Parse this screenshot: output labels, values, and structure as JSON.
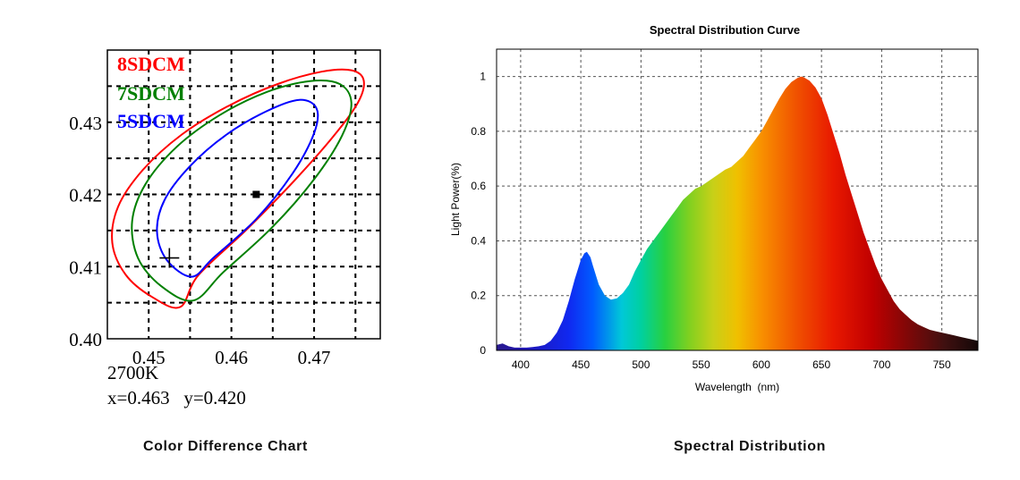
{
  "captions": {
    "left": "Color Difference Chart",
    "right": "Spectral Distribution"
  },
  "chart_data": [
    {
      "type": "scatter",
      "title": "",
      "xlabel": "",
      "ylabel": "",
      "xlim": [
        0.445,
        0.478
      ],
      "ylim": [
        0.4,
        0.44
      ],
      "x_ticks": [
        "0.45",
        "0.46",
        "0.47"
      ],
      "y_ticks": [
        "0.40",
        "0.41",
        "0.42",
        "0.43"
      ],
      "grid": true,
      "legend": "top-left",
      "colors": {
        "8SDCM": "#ff0000",
        "7SDCM": "#008000",
        "5SDCM": "#0000ff"
      },
      "series": [
        {
          "name": "8SDCM",
          "shape": "ellipse",
          "x": [
            0.4538,
            0.4504,
            0.4472,
            0.4456,
            0.4463,
            0.4493,
            0.454,
            0.4597,
            0.4656,
            0.4709,
            0.4745,
            0.476,
            0.4753,
            0.4723,
            0.4676,
            0.4619,
            0.456
          ],
          "y": [
            0.4044,
            0.4058,
            0.4089,
            0.4133,
            0.4183,
            0.4234,
            0.4283,
            0.4323,
            0.4353,
            0.437,
            0.4372,
            0.4358,
            0.4327,
            0.428,
            0.4219,
            0.4152,
            0.4088
          ]
        },
        {
          "name": "7SDCM",
          "shape": "ellipse",
          "x": [
            0.4554,
            0.4515,
            0.4487,
            0.448,
            0.4496,
            0.4534,
            0.4586,
            0.4643,
            0.4695,
            0.4731,
            0.4745,
            0.4734,
            0.47,
            0.4649,
            0.459
          ],
          "y": [
            0.4053,
            0.4073,
            0.4112,
            0.4163,
            0.4214,
            0.4266,
            0.431,
            0.4342,
            0.4357,
            0.4353,
            0.4327,
            0.4282,
            0.4221,
            0.4154,
            0.4092
          ]
        },
        {
          "name": "5SDCM",
          "shape": "ellipse",
          "x": [
            0.4552,
            0.4522,
            0.451,
            0.4519,
            0.4549,
            0.4593,
            0.4642,
            0.4682,
            0.4703,
            0.47,
            0.4674,
            0.463,
            0.4578
          ],
          "y": [
            0.4086,
            0.4109,
            0.4148,
            0.4192,
            0.4238,
            0.4282,
            0.4315,
            0.4331,
            0.4319,
            0.4285,
            0.4229,
            0.4166,
            0.4112
          ]
        }
      ],
      "points": [
        {
          "name": "measured",
          "x": 0.463,
          "y": 0.42,
          "marker": "square"
        },
        {
          "name": "cross",
          "x": 0.4525,
          "y": 0.4112,
          "marker": "plus"
        }
      ],
      "annotations": {
        "cct": "2700K",
        "coords": "x=0.463   y=0.420"
      }
    },
    {
      "type": "area",
      "title": "Spectral Distribution Curve",
      "xlabel": "Wavelength  (nm)",
      "ylabel": "Light Power(%)",
      "xlim": [
        380,
        780
      ],
      "ylim": [
        0,
        1.1
      ],
      "x_ticks": [
        "400",
        "450",
        "500",
        "550",
        "600",
        "650",
        "700",
        "750"
      ],
      "y_ticks": [
        "0",
        "0.2",
        "0.4",
        "0.6",
        "0.8",
        "1"
      ],
      "grid": true,
      "fill": "visible-spectrum gradient",
      "x": [
        380,
        385,
        390,
        395,
        400,
        405,
        410,
        415,
        420,
        425,
        430,
        435,
        440,
        445,
        450,
        453,
        455,
        458,
        460,
        465,
        470,
        475,
        480,
        485,
        490,
        495,
        500,
        505,
        510,
        515,
        520,
        525,
        530,
        535,
        540,
        545,
        550,
        555,
        560,
        565,
        570,
        575,
        580,
        585,
        590,
        595,
        600,
        605,
        610,
        615,
        620,
        625,
        630,
        633,
        635,
        640,
        645,
        650,
        655,
        660,
        665,
        670,
        675,
        680,
        685,
        690,
        695,
        700,
        705,
        710,
        715,
        720,
        725,
        730,
        735,
        740,
        745,
        750,
        755,
        760,
        765,
        770,
        775,
        780
      ],
      "y": [
        0.02,
        0.025,
        0.015,
        0.01,
        0.01,
        0.01,
        0.012,
        0.015,
        0.02,
        0.035,
        0.065,
        0.11,
        0.18,
        0.26,
        0.33,
        0.355,
        0.36,
        0.34,
        0.31,
        0.24,
        0.2,
        0.185,
        0.19,
        0.21,
        0.24,
        0.29,
        0.33,
        0.37,
        0.4,
        0.43,
        0.46,
        0.49,
        0.52,
        0.55,
        0.57,
        0.59,
        0.6,
        0.615,
        0.63,
        0.645,
        0.66,
        0.67,
        0.69,
        0.71,
        0.74,
        0.77,
        0.8,
        0.84,
        0.88,
        0.92,
        0.955,
        0.98,
        0.995,
        1.0,
        0.998,
        0.985,
        0.96,
        0.92,
        0.86,
        0.79,
        0.72,
        0.64,
        0.57,
        0.5,
        0.43,
        0.37,
        0.31,
        0.26,
        0.22,
        0.18,
        0.15,
        0.13,
        0.11,
        0.095,
        0.085,
        0.075,
        0.07,
        0.065,
        0.06,
        0.055,
        0.05,
        0.045,
        0.04,
        0.035
      ]
    }
  ]
}
